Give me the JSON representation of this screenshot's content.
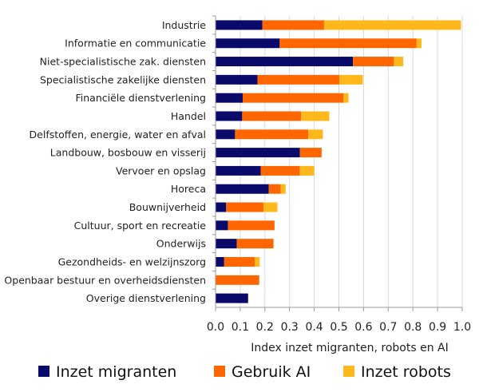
{
  "chart_data": {
    "type": "bar",
    "orientation": "horizontal",
    "stacked": true,
    "categories": [
      "Industrie",
      "Informatie en communicatie",
      "Niet-specialistische zak. diensten",
      "Specialistische zakelijke diensten",
      "Financiële dienstverlening",
      "Handel",
      "Delfstoffen, energie, water en afval",
      "Landbouw, bosbouw en visserij",
      "Vervoer en opslag",
      "Horeca",
      "Bouwnijverheid",
      "Cultuur, sport en recreatie",
      "Onderwijs",
      "Gezondheids- en welzijnszorg",
      "Openbaar bestuur en overheidsdiensten",
      "Overige dienstverlening"
    ],
    "series": [
      {
        "name": "Inzet migranten",
        "color": "#0a0a6b",
        "values": [
          0.19,
          0.26,
          0.557,
          0.17,
          0.11,
          0.108,
          0.079,
          0.342,
          0.183,
          0.216,
          0.043,
          0.05,
          0.086,
          0.035,
          0.0,
          0.132
        ]
      },
      {
        "name": "Gebruik AI",
        "color": "#ff6600",
        "values": [
          0.25,
          0.555,
          0.166,
          0.332,
          0.409,
          0.239,
          0.297,
          0.088,
          0.159,
          0.048,
          0.151,
          0.189,
          0.149,
          0.124,
          0.177,
          0.0
        ]
      },
      {
        "name": "Inzet robots",
        "color": "#ffb81c",
        "values": [
          0.555,
          0.02,
          0.038,
          0.095,
          0.02,
          0.114,
          0.059,
          0.0,
          0.058,
          0.02,
          0.057,
          0.0,
          0.0,
          0.02,
          0.0,
          0.0
        ]
      }
    ],
    "xlabel": "Index inzet migranten, robots en AI",
    "xlim": [
      0,
      1
    ],
    "xticks": [
      "0.0",
      "0.1",
      "0.2",
      "0.3",
      "0.4",
      "0.5",
      "0.6",
      "0.7",
      "0.8",
      "0.9",
      "1.0"
    ],
    "grid": "vertical",
    "legend": "bottom"
  }
}
